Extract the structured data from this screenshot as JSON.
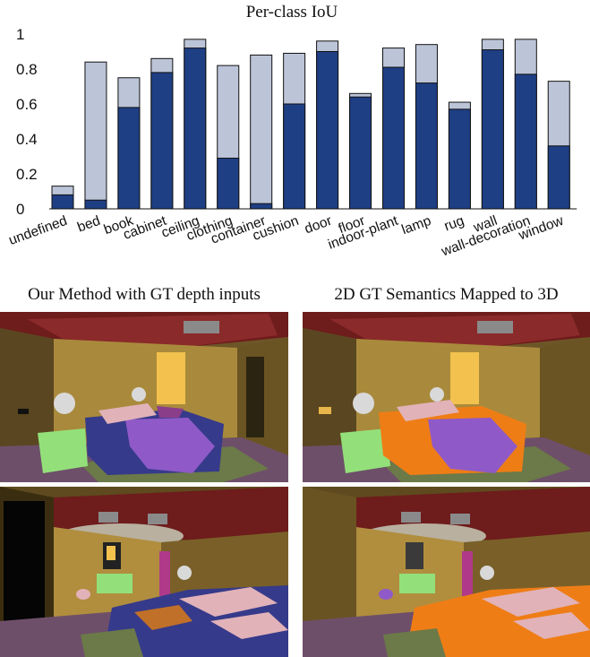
{
  "chart_data": {
    "type": "bar",
    "title": "Per-class IoU",
    "categories": [
      "undefined",
      "bed",
      "book",
      "cabinet",
      "ceiling",
      "clothing",
      "container",
      "cushion",
      "door",
      "floor",
      "indoor-plant",
      "lamp",
      "rug",
      "wall",
      "wall-decoration",
      "window"
    ],
    "series": [
      {
        "values": [
          0.08,
          0.05,
          0.58,
          0.78,
          0.92,
          0.29,
          0.03,
          0.6,
          0.9,
          0.64,
          0.81,
          0.72,
          0.57,
          0.91,
          0.77,
          0.36
        ]
      },
      {
        "values": [
          0.13,
          0.84,
          0.75,
          0.86,
          0.97,
          0.82,
          0.88,
          0.89,
          0.96,
          0.66,
          0.92,
          0.94,
          0.61,
          0.97,
          0.97,
          0.73
        ]
      }
    ],
    "colors": [
      "#1f3f84",
      "#bcc4d8"
    ],
    "ylim": [
      0,
      1
    ],
    "yticks": [
      "0",
      "0.2",
      "0.4",
      "0.6",
      "0.8",
      "1"
    ],
    "grid": false,
    "legend": "none"
  },
  "figure": {
    "caption_left": "Our Method with GT depth inputs",
    "caption_right": "2D GT Semantics Mapped to 3D"
  }
}
